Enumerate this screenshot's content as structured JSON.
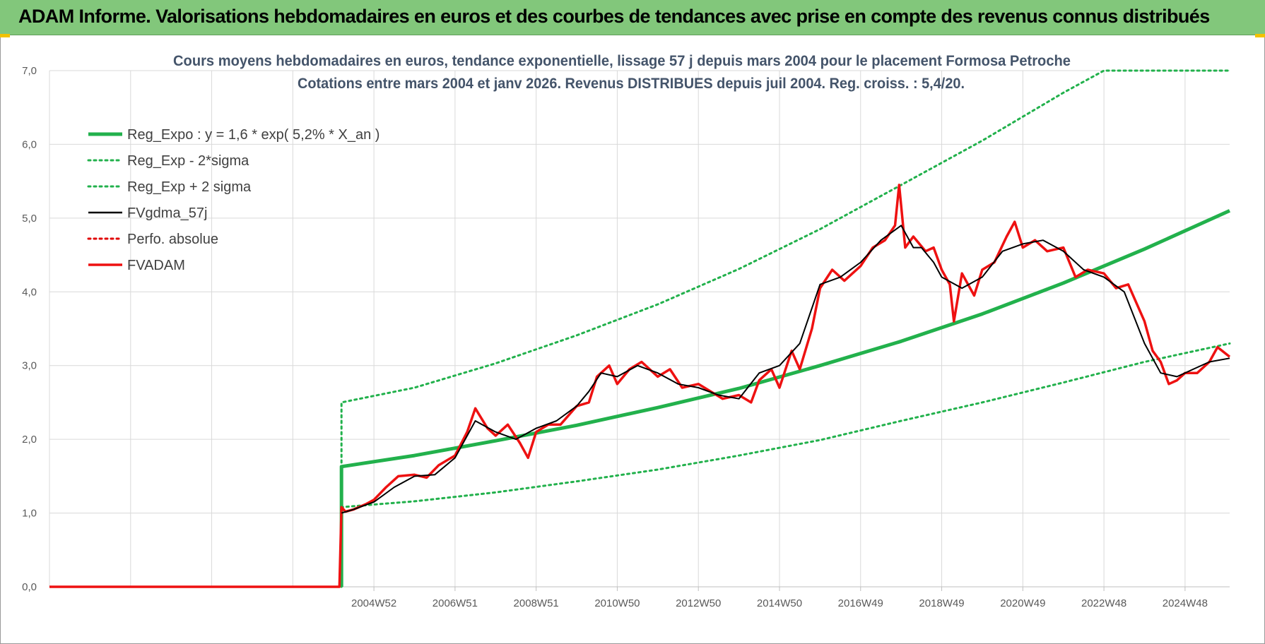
{
  "banner": {
    "title": "ADAM Informe. Valorisations hebdomadaires en euros et des courbes de tendances avec prise en compte des revenus connus distribués"
  },
  "chart_data": {
    "type": "line",
    "title": "Cours moyens hebdomadaires en euros, tendance exponentielle, lissage 57 j depuis mars 2004 pour le placement Formosa Petroche",
    "subtitle": "Cotations entre mars 2004 et janv 2026. Revenus DISTRIBUES depuis juil 2004. Reg. croiss. : 5,4/20.",
    "ylim": [
      0,
      7
    ],
    "y_ticks": [
      "0,0",
      "1,0",
      "2,0",
      "3,0",
      "4,0",
      "5,0",
      "6,0",
      "7,0"
    ],
    "x_ticks": [
      "2004W52",
      "2006W51",
      "2008W51",
      "2010W50",
      "2012W50",
      "2014W50",
      "2016W49",
      "2018W49",
      "2020W49",
      "2022W48",
      "2024W48"
    ],
    "xlim": [
      1997.0,
      2026.1
    ],
    "grid": true,
    "legend_position": "top-left",
    "series": [
      {
        "name": "Reg_Expo : y = 1,6 * exp( 5,2% *  X_an )",
        "color": "#22b14c",
        "style": "solid-thick",
        "x": [
          2004.2,
          2006.0,
          2008.0,
          2010.0,
          2012.0,
          2014.0,
          2016.0,
          2018.0,
          2020.0,
          2022.0,
          2024.0,
          2026.1
        ],
        "y": [
          1.63,
          1.78,
          1.98,
          2.19,
          2.43,
          2.69,
          3.0,
          3.33,
          3.7,
          4.12,
          4.58,
          5.1
        ]
      },
      {
        "name": "Reg_Exp - 2*sigma",
        "color": "#22b14c",
        "style": "dotted",
        "x": [
          2004.2,
          2006.0,
          2008.0,
          2010.0,
          2012.0,
          2014.0,
          2016.0,
          2018.0,
          2020.0,
          2022.0,
          2024.0,
          2026.1
        ],
        "y": [
          1.08,
          1.16,
          1.28,
          1.43,
          1.59,
          1.78,
          1.99,
          2.25,
          2.5,
          2.77,
          3.05,
          3.3
        ]
      },
      {
        "name": "Reg_Exp + 2 sigma",
        "color": "#22b14c",
        "style": "dotted",
        "x": [
          2004.2,
          2006.0,
          2008.0,
          2010.0,
          2012.0,
          2014.0,
          2016.0,
          2018.0,
          2020.0,
          2022.0,
          2023.0,
          2026.1
        ],
        "y": [
          2.5,
          2.7,
          3.03,
          3.41,
          3.83,
          4.31,
          4.85,
          5.45,
          6.05,
          6.7,
          7.0,
          7.0
        ]
      },
      {
        "name": "FVgdma_57j",
        "color": "#000000",
        "style": "solid-thin",
        "x": [
          2004.2,
          2004.5,
          2005.0,
          2005.5,
          2006.0,
          2006.5,
          2007.0,
          2007.5,
          2008.0,
          2008.5,
          2009.0,
          2009.5,
          2010.0,
          2010.3,
          2010.6,
          2011.0,
          2011.5,
          2012.0,
          2012.5,
          2013.0,
          2013.5,
          2014.0,
          2014.5,
          2015.0,
          2015.5,
          2016.0,
          2016.5,
          2017.0,
          2017.5,
          2018.0,
          2018.3,
          2018.5,
          2018.8,
          2019.0,
          2019.5,
          2020.0,
          2020.5,
          2021.0,
          2021.5,
          2022.0,
          2022.5,
          2023.0,
          2023.5,
          2024.0,
          2024.4,
          2024.8,
          2025.2,
          2025.6,
          2026.1
        ],
        "y": [
          1.0,
          1.05,
          1.15,
          1.35,
          1.5,
          1.52,
          1.75,
          2.25,
          2.1,
          2.0,
          2.15,
          2.25,
          2.45,
          2.65,
          2.9,
          2.85,
          3.0,
          2.9,
          2.75,
          2.7,
          2.6,
          2.55,
          2.9,
          3.0,
          3.3,
          4.1,
          4.2,
          4.4,
          4.7,
          4.9,
          4.6,
          4.6,
          4.4,
          4.2,
          4.05,
          4.2,
          4.55,
          4.65,
          4.7,
          4.55,
          4.3,
          4.2,
          4.0,
          3.3,
          2.9,
          2.85,
          2.95,
          3.05,
          3.1
        ]
      },
      {
        "name": "Perfo. absolue",
        "color": "#e00000",
        "style": "dotted",
        "x": [
          2004.2
        ],
        "y": [
          1.0
        ]
      },
      {
        "name": "FVADAM",
        "color": "#ee1111",
        "style": "solid-thick",
        "x": [
          1997.0,
          2004.15,
          2004.2,
          2004.3,
          2004.5,
          2004.8,
          2005.0,
          2005.3,
          2005.6,
          2006.0,
          2006.3,
          2006.6,
          2007.0,
          2007.3,
          2007.5,
          2007.8,
          2008.0,
          2008.3,
          2008.6,
          2008.8,
          2009.0,
          2009.3,
          2009.6,
          2010.0,
          2010.3,
          2010.5,
          2010.8,
          2011.0,
          2011.3,
          2011.6,
          2012.0,
          2012.3,
          2012.6,
          2013.0,
          2013.3,
          2013.6,
          2014.0,
          2014.3,
          2014.5,
          2014.8,
          2015.0,
          2015.3,
          2015.5,
          2015.8,
          2016.0,
          2016.3,
          2016.6,
          2017.0,
          2017.3,
          2017.6,
          2017.85,
          2017.95,
          2018.1,
          2018.3,
          2018.6,
          2018.8,
          2019.0,
          2019.2,
          2019.3,
          2019.5,
          2019.8,
          2020.0,
          2020.3,
          2020.6,
          2020.8,
          2021.0,
          2021.3,
          2021.6,
          2022.0,
          2022.3,
          2022.6,
          2023.0,
          2023.3,
          2023.6,
          2024.0,
          2024.2,
          2024.4,
          2024.6,
          2024.8,
          2025.0,
          2025.3,
          2025.6,
          2025.8,
          2026.1
        ],
        "y": [
          0.0,
          0.0,
          1.08,
          1.02,
          1.05,
          1.12,
          1.18,
          1.35,
          1.5,
          1.52,
          1.48,
          1.65,
          1.78,
          2.1,
          2.42,
          2.15,
          2.05,
          2.2,
          1.95,
          1.75,
          2.1,
          2.2,
          2.2,
          2.45,
          2.5,
          2.85,
          3.0,
          2.75,
          2.95,
          3.05,
          2.85,
          2.95,
          2.7,
          2.75,
          2.65,
          2.55,
          2.6,
          2.5,
          2.8,
          2.95,
          2.7,
          3.2,
          2.95,
          3.5,
          4.05,
          4.3,
          4.15,
          4.35,
          4.6,
          4.7,
          4.9,
          5.45,
          4.6,
          4.75,
          4.55,
          4.6,
          4.3,
          4.1,
          3.6,
          4.25,
          3.95,
          4.3,
          4.4,
          4.75,
          4.95,
          4.6,
          4.7,
          4.55,
          4.6,
          4.2,
          4.3,
          4.25,
          4.05,
          4.1,
          3.6,
          3.2,
          3.05,
          2.75,
          2.8,
          2.9,
          2.9,
          3.05,
          3.25,
          3.12
        ]
      }
    ]
  }
}
